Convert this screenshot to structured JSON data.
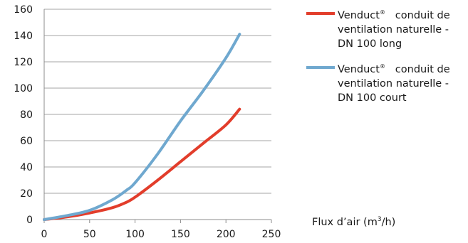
{
  "chart_data": {
    "type": "line",
    "xlabel": "Flux d'air (m³/h)",
    "xlabel_pre": "Flux d’air (m",
    "xlabel_sup": "3",
    "xlabel_post": "/h)",
    "ylabel": "",
    "xlim": [
      0,
      250
    ],
    "ylim": [
      0,
      160
    ],
    "x_ticks": [
      "0",
      "50",
      "100",
      "150",
      "200",
      "250"
    ],
    "y_ticks": [
      "0",
      "20",
      "40",
      "60",
      "80",
      "100",
      "120",
      "140",
      "160"
    ],
    "grid": "horizontal",
    "legend_position": "right",
    "series": [
      {
        "name": "Venduct® conduit de ventilation naturelle - DN 100 long",
        "legend_word": "Venduct",
        "legend_sup": "®",
        "legend_rest_1": "conduit de",
        "legend_line_2": "ventilation naturelle -",
        "legend_line_3": "DN 100 long",
        "color": "#e23d2b",
        "x": [
          0,
          25,
          50,
          75,
          90,
          100,
          125,
          150,
          175,
          200,
          215
        ],
        "y": [
          0,
          2,
          5,
          9,
          13,
          17,
          30,
          44,
          58,
          72,
          84
        ]
      },
      {
        "name": "Venduct® conduit de ventilation naturelle - DN 100 court",
        "legend_word": "Venduct",
        "legend_sup": "®",
        "legend_rest_1": "conduit de",
        "legend_line_2": "ventilation naturelle -",
        "legend_line_3": "DN 100 court",
        "color": "#6fa8cf",
        "x": [
          0,
          25,
          50,
          75,
          90,
          100,
          125,
          150,
          175,
          200,
          215
        ],
        "y": [
          0,
          3,
          7,
          15,
          22,
          28,
          50,
          75,
          98,
          123,
          141
        ]
      }
    ]
  }
}
